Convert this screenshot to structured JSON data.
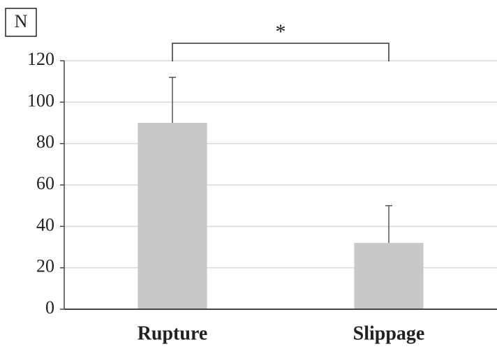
{
  "chart_data": {
    "type": "bar",
    "y_label": "N",
    "categories": [
      "Rupture",
      "Slippage"
    ],
    "values": [
      90,
      32
    ],
    "errors": [
      22,
      18
    ],
    "color": "#c8c8c8",
    "ylim": [
      0,
      120
    ],
    "yticks": [
      0,
      20,
      40,
      60,
      80,
      100,
      120
    ],
    "grid": true,
    "annotation": "*"
  }
}
